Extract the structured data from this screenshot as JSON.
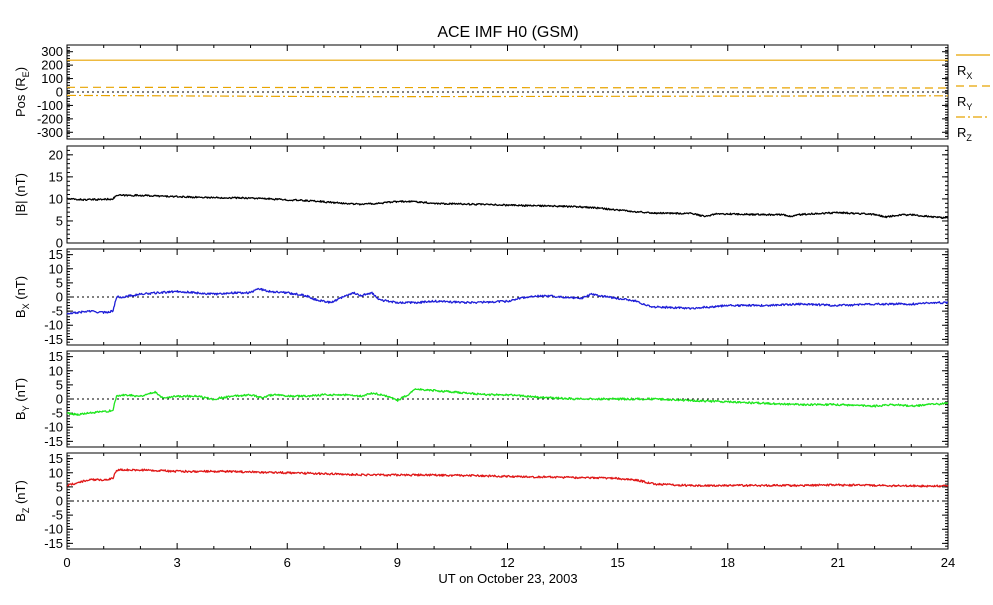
{
  "title": "ACE IMF H0 (GSM)",
  "xlabel": "UT on October 23, 2003",
  "x_ticks": [
    "0",
    "3",
    "6",
    "9",
    "12",
    "15",
    "18",
    "21",
    "24"
  ],
  "colors": {
    "pos": "#e8a400",
    "b_mag": "#000000",
    "bx": "#1f1fd8",
    "by": "#1ee61e",
    "bz": "#e01818",
    "axis": "#000000"
  },
  "chart_data": [
    {
      "type": "line",
      "panel": "position",
      "ylabel": {
        "main": "Pos (R",
        "sub": "E",
        "close": ")"
      },
      "ylim": [
        -350,
        350
      ],
      "y_ticks": [
        "300",
        "200",
        "100",
        "0",
        "-100",
        "-200",
        "-300"
      ],
      "zero_line": true,
      "legend": [
        {
          "main": "R",
          "sub": "X"
        },
        {
          "main": "R",
          "sub": "Y"
        },
        {
          "main": "R",
          "sub": "Z"
        }
      ],
      "series": [
        {
          "name": "RX",
          "style": "solid",
          "x": [
            0,
            24
          ],
          "y": [
            237,
            237
          ]
        },
        {
          "name": "RY",
          "style": "dashed",
          "x": [
            0,
            24
          ],
          "y": [
            35,
            30
          ]
        },
        {
          "name": "RZ",
          "style": "dashdot",
          "x": [
            0,
            8,
            24
          ],
          "y": [
            -25,
            -35,
            -28
          ]
        }
      ]
    },
    {
      "type": "line",
      "panel": "b_magnitude",
      "ylabel": {
        "main": "|B| (nT)"
      },
      "ylim": [
        0,
        22
      ],
      "y_ticks": [
        "20",
        "15",
        "10",
        "5",
        "0"
      ],
      "zero_line": false,
      "series": [
        {
          "name": "|B|",
          "x": [
            0,
            0.5,
            1.0,
            1.25,
            1.35,
            2,
            3,
            4,
            5,
            6,
            6.8,
            7.2,
            7.5,
            8,
            8.5,
            9,
            9.5,
            10,
            11,
            12,
            13,
            14,
            14.5,
            15,
            15.5,
            16,
            17,
            17.4,
            17.7,
            18,
            19,
            19.5,
            19.7,
            20,
            21,
            22,
            22.3,
            22.7,
            23,
            23.5,
            24
          ],
          "y": [
            10,
            9.8,
            9.9,
            10,
            10.8,
            10.8,
            10.5,
            10.3,
            10.2,
            9.8,
            9.5,
            9.2,
            9.0,
            8.8,
            9.0,
            9.4,
            9.4,
            9.0,
            8.8,
            8.6,
            8.4,
            8.2,
            7.9,
            7.5,
            7.1,
            6.8,
            6.7,
            6.0,
            6.6,
            6.6,
            6.4,
            6.5,
            6.0,
            6.5,
            6.9,
            6.5,
            5.9,
            6.4,
            6.4,
            6.0,
            5.6
          ]
        }
      ]
    },
    {
      "type": "line",
      "panel": "bx",
      "ylabel": {
        "main": "B",
        "sub": "X",
        "close": " (nT)"
      },
      "ylim": [
        -17,
        17
      ],
      "y_ticks": [
        "15",
        "10",
        "5",
        "0",
        "-5",
        "-10",
        "-15"
      ],
      "zero_line": true,
      "series": [
        {
          "name": "BX",
          "x": [
            0,
            0.3,
            0.6,
            1.0,
            1.25,
            1.35,
            1.5,
            2,
            2.5,
            3,
            3.5,
            4,
            4.5,
            5,
            5.2,
            5.5,
            6,
            6.5,
            6.8,
            7.2,
            7.5,
            7.8,
            8.0,
            8.3,
            8.5,
            9,
            9.5,
            10,
            11,
            12,
            12.5,
            13,
            13.5,
            14,
            14.3,
            14.5,
            15,
            15.5,
            15.8,
            16,
            17,
            18,
            19,
            20,
            21,
            22,
            23,
            23.5,
            24
          ],
          "y": [
            -6,
            -5.5,
            -5,
            -5.5,
            -5,
            0,
            0,
            1,
            1.5,
            2,
            1.5,
            1,
            1.5,
            1.5,
            3,
            2,
            1.5,
            0.5,
            -1,
            -2,
            0,
            1.5,
            0.5,
            1.5,
            -1,
            -2,
            -2,
            -1.5,
            -2,
            -1.5,
            0,
            0.5,
            0,
            -0.5,
            1,
            0.5,
            -0.5,
            -1.5,
            -3,
            -3.5,
            -4,
            -3,
            -3,
            -2.5,
            -3,
            -2.5,
            -2.5,
            -2,
            -2
          ]
        }
      ]
    },
    {
      "type": "line",
      "panel": "by",
      "ylabel": {
        "main": "B",
        "sub": "Y",
        "close": " (nT)"
      },
      "ylim": [
        -17,
        17
      ],
      "y_ticks": [
        "15",
        "10",
        "5",
        "0",
        "-5",
        "-10",
        "-15"
      ],
      "zero_line": true,
      "series": [
        {
          "name": "BY",
          "x": [
            0,
            0.3,
            0.6,
            1.0,
            1.25,
            1.35,
            1.6,
            2,
            2.4,
            2.6,
            3,
            3.5,
            4,
            4.5,
            5,
            5.3,
            5.6,
            6,
            6.5,
            7,
            7.5,
            8,
            8.3,
            8.6,
            9,
            9.3,
            9.5,
            10,
            10.5,
            11,
            11.5,
            12,
            12.5,
            13,
            14,
            15,
            16,
            17,
            18,
            19,
            20,
            21,
            22,
            22.5,
            23,
            23.5,
            24
          ],
          "y": [
            -5,
            -5.5,
            -5,
            -4.5,
            -4,
            1,
            1.5,
            1,
            2.5,
            0.5,
            1,
            1,
            0,
            1,
            1.5,
            0.5,
            1.5,
            1,
            1,
            1.5,
            1.5,
            1,
            2,
            1.5,
            -0.5,
            1.5,
            3.5,
            3,
            2.5,
            2,
            1.5,
            1.5,
            1,
            0.5,
            0,
            0,
            0,
            -0.5,
            -1,
            -1.5,
            -2,
            -2,
            -2.5,
            -2,
            -2.5,
            -2,
            -1.5
          ]
        }
      ]
    },
    {
      "type": "line",
      "panel": "bz",
      "ylabel": {
        "main": "B",
        "sub": "Z",
        "close": " (nT)"
      },
      "ylim": [
        -17,
        17
      ],
      "y_ticks": [
        "15",
        "10",
        "5",
        "0",
        "-5",
        "-10",
        "-15"
      ],
      "zero_line": true,
      "series": [
        {
          "name": "BZ",
          "x": [
            0,
            0.3,
            0.6,
            1.0,
            1.25,
            1.35,
            2,
            3,
            4,
            5,
            6,
            7,
            8,
            9,
            10,
            11,
            12,
            13,
            14,
            15,
            15.5,
            16,
            17,
            18,
            19,
            20,
            21,
            22,
            23,
            24
          ],
          "y": [
            5.5,
            6.5,
            7.5,
            7.5,
            8,
            11,
            11,
            10.5,
            10.5,
            10.3,
            10,
            9.7,
            9.3,
            9.2,
            9.2,
            9,
            8.7,
            8.5,
            8.3,
            8,
            7.5,
            6,
            5.5,
            5.5,
            5.5,
            5.5,
            5.7,
            5.5,
            5.3,
            5.3
          ]
        }
      ]
    }
  ]
}
